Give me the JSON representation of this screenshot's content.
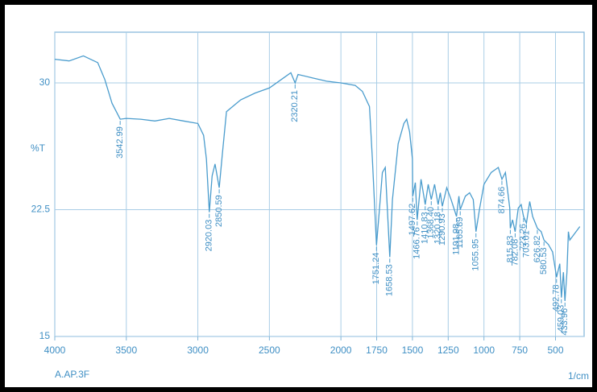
{
  "chart_data": {
    "type": "line",
    "y_label": "%T",
    "sample_label": "A.AP.3F",
    "x_unit_label": "1/cm",
    "color": "#4a9ccd",
    "grid": true,
    "xlim": [
      4000,
      300
    ],
    "ylim": [
      15,
      33
    ],
    "xticks": [
      4000,
      3500,
      3000,
      2500,
      2000,
      1750,
      1500,
      1250,
      1000,
      750,
      500
    ],
    "yticks": [
      15,
      22.5,
      30
    ],
    "x": [
      4000,
      3900,
      3800,
      3700,
      3650,
      3600,
      3542.99,
      3500,
      3400,
      3300,
      3200,
      3100,
      3000,
      2960,
      2940,
      2920.03,
      2900,
      2880,
      2850.59,
      2830,
      2800,
      2700,
      2600,
      2500,
      2400,
      2350,
      2320.21,
      2300,
      2200,
      2100,
      2000,
      1900,
      1850,
      1800,
      1780,
      1751.24,
      1730,
      1710,
      1690,
      1658.53,
      1640,
      1600,
      1560,
      1540,
      1520,
      1500,
      1497.62,
      1480,
      1466.76,
      1440,
      1410.83,
      1390,
      1368.4,
      1345,
      1320.18,
      1305,
      1290.93,
      1260,
      1230,
      1191.98,
      1175,
      1165.89,
      1130,
      1100,
      1075,
      1055.95,
      1030,
      1000,
      950,
      900,
      874.66,
      850,
      820,
      815.83,
      800,
      782.08,
      760,
      740,
      723.26,
      703.01,
      680,
      660,
      626.82,
      600,
      580.53,
      550,
      520,
      492.78,
      470,
      459.03,
      445,
      433.96,
      420,
      410,
      400,
      330
    ],
    "values": [
      31.4,
      31.3,
      31.6,
      31.2,
      30.2,
      28.8,
      27.85,
      27.9,
      27.85,
      27.75,
      27.9,
      27.75,
      27.6,
      26.9,
      25.5,
      22.35,
      24.5,
      25.2,
      23.8,
      25.7,
      28.3,
      29.0,
      29.4,
      29.7,
      30.3,
      30.6,
      30.0,
      30.5,
      30.3,
      30.1,
      30.0,
      29.85,
      29.5,
      28.6,
      25.5,
      20.4,
      22.6,
      24.7,
      25.0,
      19.7,
      23.1,
      26.4,
      27.6,
      27.85,
      27.1,
      25.5,
      23.3,
      24.1,
      21.9,
      24.3,
      22.8,
      24.0,
      23.1,
      24.0,
      22.8,
      23.5,
      22.7,
      23.8,
      23.1,
      22.1,
      23.3,
      22.5,
      23.3,
      23.5,
      23.1,
      21.2,
      22.6,
      24.0,
      24.7,
      25.0,
      24.3,
      24.7,
      22.6,
      21.4,
      21.9,
      21.2,
      22.6,
      22.8,
      22.1,
      21.7,
      22.98,
      22.1,
      21.4,
      21.2,
      20.7,
      20.45,
      20.0,
      18.5,
      19.3,
      17.3,
      18.8,
      17.1,
      18.8,
      21.2,
      20.7,
      21.5
    ],
    "annotations": [
      {
        "x": 3542.99,
        "label": "3542.99"
      },
      {
        "x": 2920.03,
        "label": "2920.03"
      },
      {
        "x": 2850.59,
        "label": "2850.59"
      },
      {
        "x": 2320.21,
        "label": "2320.21"
      },
      {
        "x": 1751.24,
        "label": "1751.24"
      },
      {
        "x": 1658.53,
        "label": "1658.53"
      },
      {
        "x": 1497.62,
        "label": "1497.62"
      },
      {
        "x": 1466.76,
        "label": "1466.76"
      },
      {
        "x": 1410.83,
        "label": "1410.83"
      },
      {
        "x": 1368.4,
        "label": "1368.40"
      },
      {
        "x": 1320.18,
        "label": "1320.18"
      },
      {
        "x": 1290.93,
        "label": "1290.93"
      },
      {
        "x": 1191.98,
        "label": "1191.98"
      },
      {
        "x": 1165.89,
        "label": "1165.89"
      },
      {
        "x": 1055.95,
        "label": "1055.95"
      },
      {
        "x": 874.66,
        "label": "874.66"
      },
      {
        "x": 815.83,
        "label": "815.83"
      },
      {
        "x": 782.08,
        "label": "782.08"
      },
      {
        "x": 723.26,
        "label": "723.26"
      },
      {
        "x": 703.01,
        "label": "703.01"
      },
      {
        "x": 626.82,
        "label": "626.82"
      },
      {
        "x": 580.53,
        "label": "580.53"
      },
      {
        "x": 492.78,
        "label": "492.78"
      },
      {
        "x": 459.03,
        "label": "459.03"
      },
      {
        "x": 433.96,
        "label": "433.96"
      }
    ]
  }
}
